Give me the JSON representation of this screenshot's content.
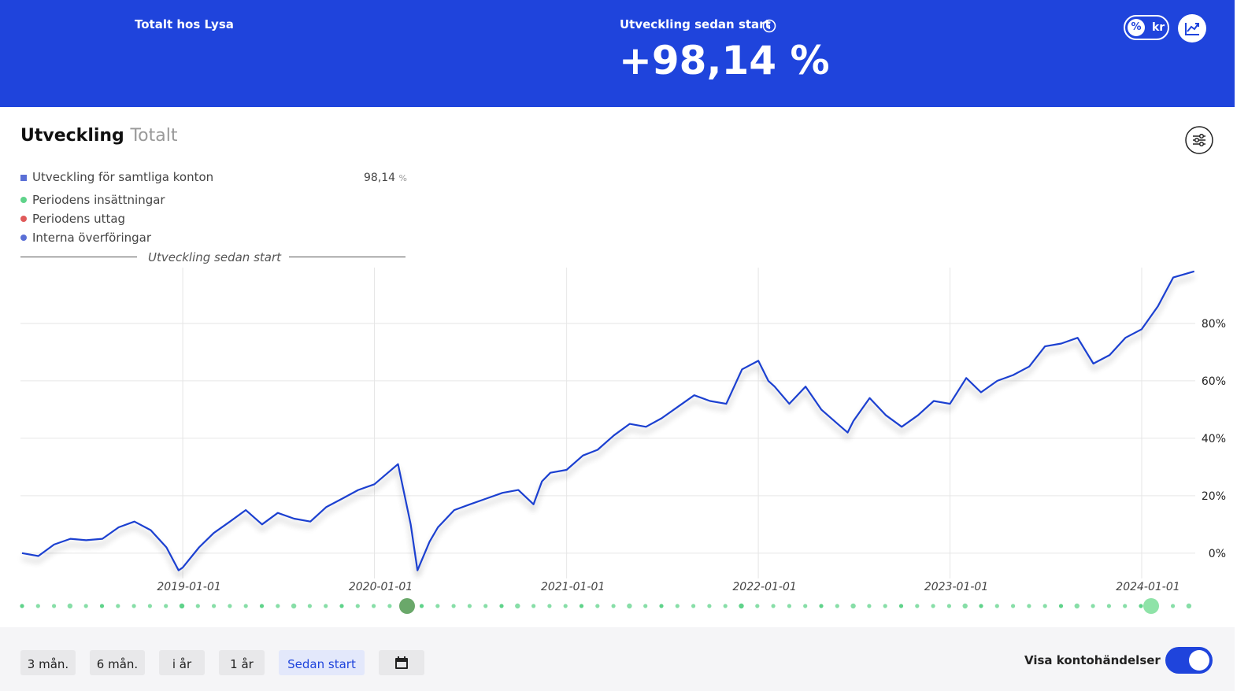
{
  "header": {
    "left_title": "Totalt hos Lysa",
    "center_title": "Utveckling sedan start",
    "center_value": "+98,14 %",
    "toggle_percent": "%",
    "toggle_kr": "kr"
  },
  "panel": {
    "title": "Utveckling",
    "subtitle": "Totalt",
    "total_value": "98,14",
    "total_unit": "%",
    "legend": [
      "Periodens insättningar",
      "Periodens uttag",
      "Interna överföringar"
    ],
    "divider_label": "Utveckling sedan start"
  },
  "chart_data": {
    "type": "line",
    "x": [
      "2018-03-01",
      "2018-04-01",
      "2018-05-01",
      "2018-06-01",
      "2018-07-01",
      "2018-08-01",
      "2018-09-01",
      "2018-10-01",
      "2018-11-01",
      "2018-12-01",
      "2018-12-24",
      "2019-01-01",
      "2019-02-01",
      "2019-03-01",
      "2019-04-01",
      "2019-05-01",
      "2019-06-01",
      "2019-07-01",
      "2019-08-01",
      "2019-09-01",
      "2019-10-01",
      "2019-11-01",
      "2019-12-01",
      "2020-01-01",
      "2020-02-15",
      "2020-03-10",
      "2020-03-23",
      "2020-04-15",
      "2020-05-01",
      "2020-06-01",
      "2020-07-01",
      "2020-08-01",
      "2020-09-01",
      "2020-10-01",
      "2020-10-30",
      "2020-11-15",
      "2020-12-01",
      "2021-01-01",
      "2021-02-01",
      "2021-03-01",
      "2021-04-01",
      "2021-05-01",
      "2021-06-01",
      "2021-07-01",
      "2021-08-01",
      "2021-09-01",
      "2021-10-01",
      "2021-11-01",
      "2021-12-01",
      "2022-01-01",
      "2022-01-20",
      "2022-02-01",
      "2022-03-01",
      "2022-04-01",
      "2022-05-01",
      "2022-06-01",
      "2022-06-20",
      "2022-07-01",
      "2022-08-01",
      "2022-09-01",
      "2022-10-01",
      "2022-11-01",
      "2022-12-01",
      "2023-01-01",
      "2023-02-01",
      "2023-03-01",
      "2023-04-01",
      "2023-05-01",
      "2023-06-01",
      "2023-07-01",
      "2023-08-01",
      "2023-09-01",
      "2023-10-01",
      "2023-11-01",
      "2023-12-01",
      "2024-01-01",
      "2024-02-01",
      "2024-03-01",
      "2024-04-10"
    ],
    "series": [
      {
        "name": "Utveckling för samtliga konton",
        "color": "#1a3fd0",
        "values": [
          0,
          -1,
          3,
          5,
          4.5,
          5,
          9,
          11,
          8,
          2,
          -6,
          -5,
          2,
          7,
          11,
          15,
          10,
          14,
          12,
          11,
          16,
          19,
          22,
          24,
          31,
          10,
          -6,
          4,
          9,
          15,
          17,
          19,
          21,
          22,
          17,
          25,
          28,
          29,
          34,
          36,
          41,
          45,
          44,
          47,
          51,
          55,
          53,
          52,
          64,
          67,
          60,
          58,
          52,
          58,
          50,
          45,
          42,
          46,
          54,
          48,
          44,
          48,
          53,
          52,
          61,
          56,
          60,
          62,
          65,
          72,
          73,
          75,
          66,
          69,
          75,
          78,
          86,
          96,
          98.14
        ]
      }
    ],
    "xlim": [
      "2018-03-01",
      "2024-04-15"
    ],
    "xticks": [
      "2019-01-01",
      "2020-01-01",
      "2021-01-01",
      "2022-01-01",
      "2023-01-01",
      "2024-01-01"
    ],
    "ylim": [
      -8,
      100
    ],
    "yticks": [
      {
        "value": 0,
        "label": "0%"
      },
      {
        "value": 20,
        "label": "20%"
      },
      {
        "value": 40,
        "label": "40%"
      },
      {
        "value": 60,
        "label": "60%"
      },
      {
        "value": 80,
        "label": "80%"
      }
    ],
    "grid": true
  },
  "controls": {
    "ranges": [
      "3 mån.",
      "6 mån.",
      "i år",
      "1 år",
      "Sedan start"
    ],
    "active": "Sedan start",
    "events_toggle": "Visa kontohändelser"
  }
}
